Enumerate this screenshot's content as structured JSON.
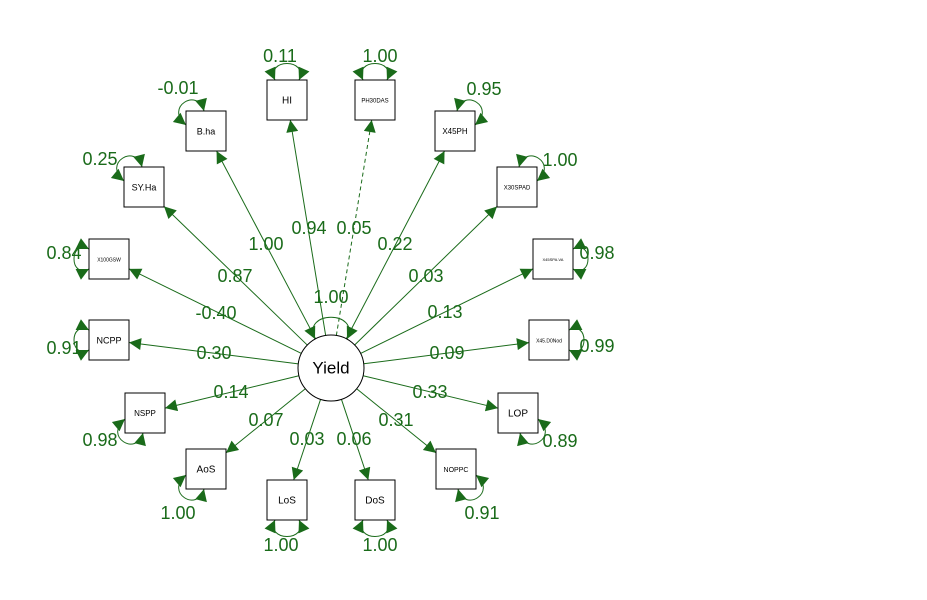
{
  "colors": {
    "edge": "#1a6b1a",
    "node_border": "#000000",
    "background": "#ffffff"
  },
  "center": {
    "label": "Yield",
    "self_variance": "1.00"
  },
  "nodes": [
    {
      "id": "HI",
      "label": "HI",
      "path": "0.94",
      "variance": "0.11",
      "dashed": false
    },
    {
      "id": "PH30DAS",
      "label": "PH30DAS",
      "path": "0.05",
      "variance": "1.00",
      "dashed": true
    },
    {
      "id": "X45PH",
      "label": "X45PH",
      "path": "0.22",
      "variance": "0.95",
      "dashed": false
    },
    {
      "id": "X30SPAD",
      "label": "X30SPAD",
      "path": "0.03",
      "variance": "1.00",
      "dashed": false
    },
    {
      "id": "X45SPAD",
      "label": "X45SPA.VA",
      "path": "0.13",
      "variance": "0.98",
      "dashed": false
    },
    {
      "id": "X45DONod",
      "label": "X45.D0Nod",
      "path": "0.09",
      "variance": "0.99",
      "dashed": false
    },
    {
      "id": "LOP",
      "label": "LOP",
      "path": "0.33",
      "variance": "0.89",
      "dashed": false
    },
    {
      "id": "NOPPC",
      "label": "NOPPC",
      "path": "0.31",
      "variance": "0.91",
      "dashed": false
    },
    {
      "id": "DoS",
      "label": "DoS",
      "path": "0.06",
      "variance": "1.00",
      "dashed": false
    },
    {
      "id": "LoS",
      "label": "LoS",
      "path": "0.03",
      "variance": "1.00",
      "dashed": false
    },
    {
      "id": "AoS",
      "label": "AoS",
      "path": "0.07",
      "variance": "1.00",
      "dashed": false
    },
    {
      "id": "NSPP",
      "label": "NSPP",
      "path": "0.14",
      "variance": "0.98",
      "dashed": false
    },
    {
      "id": "NCPP",
      "label": "NCPP",
      "path": "0.30",
      "variance": "0.91",
      "dashed": false
    },
    {
      "id": "X100GSW",
      "label": "X100GSW",
      "path": "-0.40",
      "variance": "0.84",
      "dashed": false
    },
    {
      "id": "SYHa",
      "label": "SY.Ha",
      "path": "0.87",
      "variance": "0.25",
      "dashed": false
    },
    {
      "id": "Bha",
      "label": "B.ha",
      "path": "1.00",
      "variance": "-0.01",
      "dashed": false
    }
  ]
}
